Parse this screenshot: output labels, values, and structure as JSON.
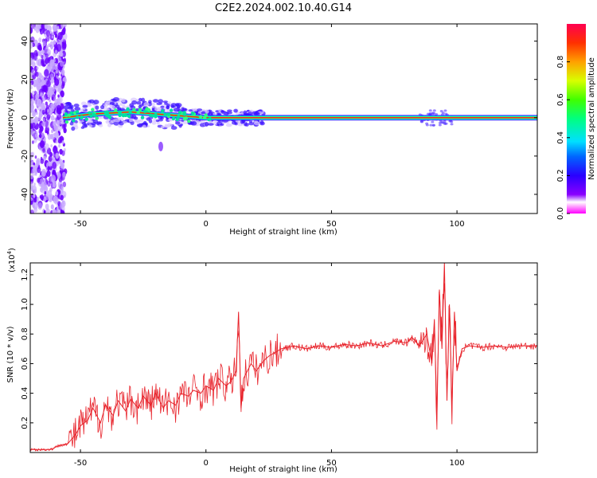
{
  "title": "C2E2.2024.002.10.40.G14",
  "colors": {
    "snr_line": "#e8222a",
    "scatter": "#6a00ff"
  },
  "chart_data": [
    {
      "type": "heatmap",
      "xlabel": "Height of straight line (km)",
      "ylabel": "Frequency (Hz)",
      "xlim": [
        -70,
        132
      ],
      "ylim": [
        -50,
        49
      ],
      "x_ticks": [
        {
          "value": -50,
          "label": "-50"
        },
        {
          "value": 0,
          "label": "0"
        },
        {
          "value": 50,
          "label": "50"
        },
        {
          "value": 100,
          "label": "100"
        }
      ],
      "y_ticks": [
        {
          "value": -40,
          "label": "-40"
        },
        {
          "value": -20,
          "label": "-20"
        },
        {
          "value": 0,
          "label": "0"
        },
        {
          "value": 20,
          "label": "20"
        },
        {
          "value": 40,
          "label": "40"
        }
      ],
      "ridge": {
        "description_points_km_hz": [
          [
            -57,
            0
          ],
          [
            -45,
            2
          ],
          [
            -30,
            3
          ],
          [
            -20,
            2
          ],
          [
            -10,
            1
          ],
          [
            0,
            0
          ],
          [
            20,
            0
          ],
          [
            132,
            0
          ]
        ]
      },
      "colorbar": {
        "label": "Normalized spectral amplitude",
        "range": [
          0,
          1
        ],
        "ticks": [
          {
            "value": 0.0,
            "label": "0.0"
          },
          {
            "value": 0.2,
            "label": "0.2"
          },
          {
            "value": 0.4,
            "label": "0.4"
          },
          {
            "value": 0.6,
            "label": "0.6"
          },
          {
            "value": 0.8,
            "label": "0.8"
          }
        ]
      }
    },
    {
      "type": "line",
      "xlabel": "Height of straight line (km)",
      "ylabel": "SNR (10 * v/v)",
      "y_multiplier": "(x10",
      "y_multiplier_exp": "4",
      "y_multiplier_close": ")",
      "xlim": [
        -70,
        132
      ],
      "ylim": [
        0,
        1.28
      ],
      "x_ticks": [
        {
          "value": -50,
          "label": "-50"
        },
        {
          "value": 0,
          "label": "0"
        },
        {
          "value": 50,
          "label": "50"
        },
        {
          "value": 100,
          "label": "100"
        }
      ],
      "y_ticks": [
        {
          "value": 0.2,
          "label": "0.2"
        },
        {
          "value": 0.4,
          "label": "0.4"
        },
        {
          "value": 0.6,
          "label": "0.6"
        },
        {
          "value": 0.8,
          "label": "0.8"
        },
        {
          "value": 1.0,
          "label": "1.0"
        },
        {
          "value": 1.2,
          "label": "1.2"
        }
      ],
      "series": [
        {
          "name": "SNR",
          "x": [
            -70,
            -62,
            -58,
            -55,
            -52,
            -50,
            -47,
            -45,
            -42,
            -40,
            -37,
            -35,
            -32,
            -30,
            -27,
            -25,
            -22,
            -20,
            -17,
            -15,
            -12,
            -10,
            -7,
            -5,
            -2,
            0,
            3,
            5,
            8,
            10,
            12,
            13,
            14,
            15,
            18,
            20,
            23,
            25,
            28,
            30,
            35,
            40,
            45,
            50,
            55,
            60,
            65,
            70,
            75,
            80,
            82,
            85,
            88,
            90,
            91,
            92,
            93,
            94,
            95,
            96,
            97,
            98,
            99,
            100,
            102,
            105,
            110,
            115,
            120,
            125,
            132
          ],
          "y": [
            0.02,
            0.02,
            0.05,
            0.06,
            0.12,
            0.18,
            0.22,
            0.3,
            0.2,
            0.32,
            0.25,
            0.35,
            0.28,
            0.36,
            0.3,
            0.38,
            0.32,
            0.4,
            0.3,
            0.35,
            0.32,
            0.4,
            0.38,
            0.42,
            0.4,
            0.45,
            0.42,
            0.5,
            0.45,
            0.48,
            0.55,
            0.95,
            0.3,
            0.5,
            0.6,
            0.55,
            0.62,
            0.65,
            0.68,
            0.7,
            0.72,
            0.7,
            0.72,
            0.71,
            0.73,
            0.72,
            0.74,
            0.72,
            0.75,
            0.74,
            0.78,
            0.72,
            0.8,
            0.6,
            0.9,
            0.25,
            1.1,
            0.7,
            1.28,
            0.35,
            1.0,
            0.3,
            0.95,
            0.55,
            0.7,
            0.72,
            0.71,
            0.72,
            0.71,
            0.72,
            0.72
          ]
        }
      ]
    }
  ]
}
